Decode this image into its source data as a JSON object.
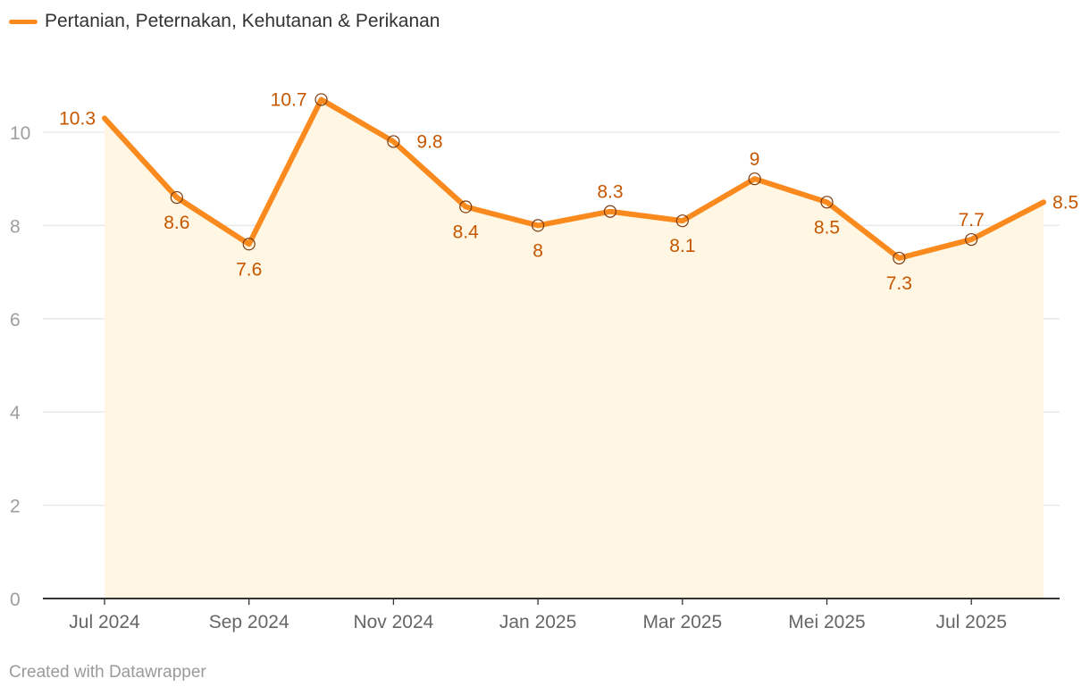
{
  "legend": {
    "label": "Pertanian, Peternakan, Kehutanan & Perikanan"
  },
  "footer": "Created with Datawrapper",
  "colors": {
    "line": "#fa8a1e",
    "area": "#fff7e3",
    "label": "#c65600",
    "grid": "#e6e6e6",
    "axis": "#333333"
  },
  "chart_data": {
    "type": "line",
    "title": "",
    "xlabel": "",
    "ylabel": "",
    "ylim": [
      0,
      11
    ],
    "yticks": [
      0,
      2,
      4,
      6,
      8,
      10
    ],
    "x_tick_labels": [
      "Jul 2024",
      "Sep 2024",
      "Nov 2024",
      "Jan 2025",
      "Mar 2025",
      "Mei 2025",
      "Jul 2025"
    ],
    "x": [
      "Jul 2024",
      "Aug 2024",
      "Sep 2024",
      "Oct 2024",
      "Nov 2024",
      "Dec 2024",
      "Jan 2025",
      "Feb 2025",
      "Mar 2025",
      "Apr 2025",
      "Mei 2025",
      "Jun 2025",
      "Jul 2025",
      "Aug 2025"
    ],
    "series": [
      {
        "name": "Pertanian, Peternakan, Kehutanan & Perikanan",
        "values": [
          10.3,
          8.6,
          7.6,
          10.7,
          9.8,
          8.4,
          8.0,
          8.3,
          8.1,
          9.0,
          8.5,
          7.3,
          7.7,
          8.5
        ],
        "labels": [
          "10.3",
          "8.6",
          "7.6",
          "10.7",
          "9.8",
          "8.4",
          "8",
          "8.3",
          "8.1",
          "9",
          "8.5",
          "7.3",
          "7.7",
          "8.5"
        ]
      }
    ],
    "grid": true,
    "area_fill": true,
    "legend": "top-left"
  }
}
